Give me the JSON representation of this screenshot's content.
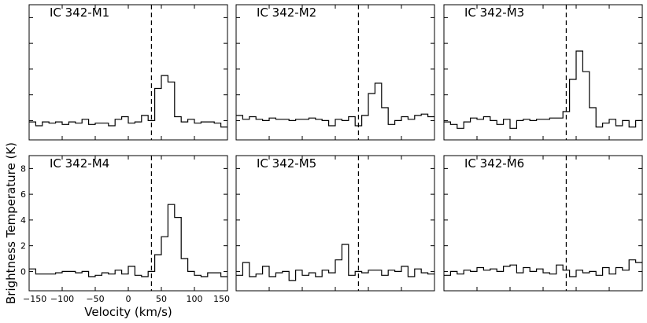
{
  "ylabel": "Brightness Temperature (K)",
  "xlabel": "Velocity (km/s)",
  "chart_data": [
    {
      "type": "line",
      "title": "IC 342-M1",
      "xlim": [
        -150,
        150
      ],
      "ylim": [
        -1.5,
        9
      ],
      "vline": 35,
      "x": [
        -150,
        -140,
        -130,
        -120,
        -110,
        -100,
        -90,
        -80,
        -70,
        -60,
        -50,
        -40,
        -30,
        -20,
        -10,
        0,
        10,
        20,
        30,
        40,
        50,
        60,
        70,
        80,
        90,
        100,
        110,
        120,
        130,
        140
      ],
      "values": [
        -0.1,
        -0.4,
        -0.1,
        -0.2,
        -0.1,
        -0.3,
        -0.1,
        -0.2,
        0.1,
        -0.3,
        -0.2,
        -0.2,
        -0.4,
        0.1,
        0.3,
        -0.2,
        -0.1,
        0.4,
        0.0,
        2.5,
        3.5,
        3.0,
        0.3,
        -0.1,
        0.1,
        -0.2,
        -0.1,
        -0.1,
        -0.2,
        -0.5
      ]
    },
    {
      "type": "line",
      "title": "IC 342-M2",
      "xlim": [
        -150,
        150
      ],
      "ylim": [
        -1.5,
        9
      ],
      "vline": 35,
      "x": [
        -150,
        -140,
        -130,
        -120,
        -110,
        -100,
        -90,
        -80,
        -70,
        -60,
        -50,
        -40,
        -30,
        -20,
        -10,
        0,
        10,
        20,
        30,
        40,
        50,
        60,
        70,
        80,
        90,
        100,
        110,
        120,
        130,
        140
      ],
      "values": [
        0.4,
        0.1,
        0.3,
        0.1,
        0.0,
        0.2,
        0.1,
        0.1,
        0.0,
        0.1,
        0.1,
        0.2,
        0.1,
        0.0,
        -0.4,
        0.1,
        0.0,
        0.3,
        -0.4,
        0.4,
        2.1,
        2.9,
        1.0,
        -0.3,
        0.0,
        0.3,
        0.1,
        0.4,
        0.5,
        0.3
      ]
    },
    {
      "type": "line",
      "title": "IC 342-M3",
      "xlim": [
        -150,
        150
      ],
      "ylim": [
        -1.5,
        9
      ],
      "vline": 35,
      "x": [
        -150,
        -140,
        -130,
        -120,
        -110,
        -100,
        -90,
        -80,
        -70,
        -60,
        -50,
        -40,
        -30,
        -20,
        -10,
        0,
        10,
        20,
        30,
        40,
        50,
        60,
        70,
        80,
        90,
        100,
        110,
        120,
        130,
        140
      ],
      "values": [
        -0.1,
        -0.3,
        -0.6,
        -0.1,
        0.2,
        0.1,
        0.3,
        0.0,
        -0.3,
        0.1,
        -0.6,
        0.0,
        0.1,
        0.0,
        0.1,
        0.1,
        0.2,
        0.2,
        0.7,
        3.2,
        5.4,
        3.8,
        1.0,
        -0.5,
        -0.2,
        0.1,
        -0.4,
        0.0,
        -0.5,
        0.0
      ]
    },
    {
      "type": "line",
      "title": "IC 342-M4",
      "xlim": [
        -150,
        150
      ],
      "ylim": [
        -1.5,
        9
      ],
      "yticks": [
        0,
        2,
        4,
        6,
        8
      ],
      "xticks": [
        -150,
        -100,
        -50,
        0,
        50,
        100,
        150
      ],
      "vline": 35,
      "x": [
        -150,
        -140,
        -130,
        -120,
        -110,
        -100,
        -90,
        -80,
        -70,
        -60,
        -50,
        -40,
        -30,
        -20,
        -10,
        0,
        10,
        20,
        30,
        40,
        50,
        60,
        70,
        80,
        90,
        100,
        110,
        120,
        130,
        140
      ],
      "values": [
        0.2,
        -0.2,
        -0.2,
        -0.2,
        -0.1,
        0.0,
        0.0,
        -0.1,
        0.0,
        -0.4,
        -0.3,
        -0.1,
        -0.2,
        0.1,
        -0.2,
        0.4,
        -0.3,
        -0.4,
        0.0,
        1.3,
        2.7,
        5.2,
        4.2,
        1.0,
        0.0,
        -0.3,
        -0.4,
        -0.1,
        -0.1,
        -0.4
      ]
    },
    {
      "type": "line",
      "title": "IC 342-M5",
      "xlim": [
        -150,
        150
      ],
      "ylim": [
        -1.5,
        9
      ],
      "vline": 35,
      "x": [
        -150,
        -140,
        -130,
        -120,
        -110,
        -100,
        -90,
        -80,
        -70,
        -60,
        -50,
        -40,
        -30,
        -20,
        -10,
        0,
        10,
        20,
        30,
        40,
        50,
        60,
        70,
        80,
        90,
        100,
        110,
        120,
        130,
        140
      ],
      "values": [
        -0.3,
        0.7,
        -0.4,
        -0.2,
        0.4,
        -0.4,
        -0.1,
        0.0,
        -0.7,
        0.1,
        -0.3,
        -0.1,
        -0.4,
        0.1,
        -0.1,
        0.9,
        2.1,
        -0.3,
        0.0,
        -0.1,
        0.1,
        0.1,
        -0.3,
        0.1,
        0.0,
        0.4,
        -0.4,
        0.2,
        -0.1,
        -0.2
      ]
    },
    {
      "type": "line",
      "title": "IC 342-M6",
      "xlim": [
        -150,
        150
      ],
      "ylim": [
        -1.5,
        9
      ],
      "vline": 35,
      "x": [
        -150,
        -140,
        -130,
        -120,
        -110,
        -100,
        -90,
        -80,
        -70,
        -60,
        -50,
        -40,
        -30,
        -20,
        -10,
        0,
        10,
        20,
        30,
        40,
        50,
        60,
        70,
        80,
        90,
        100,
        110,
        120,
        130,
        140
      ],
      "values": [
        -0.3,
        0.0,
        -0.2,
        0.1,
        0.0,
        0.3,
        0.1,
        0.2,
        0.0,
        0.4,
        0.5,
        -0.1,
        0.3,
        0.0,
        0.2,
        -0.1,
        -0.2,
        0.5,
        0.1,
        -0.4,
        0.1,
        -0.1,
        0.0,
        -0.3,
        0.3,
        -0.2,
        0.3,
        0.1,
        0.9,
        0.7
      ]
    }
  ]
}
